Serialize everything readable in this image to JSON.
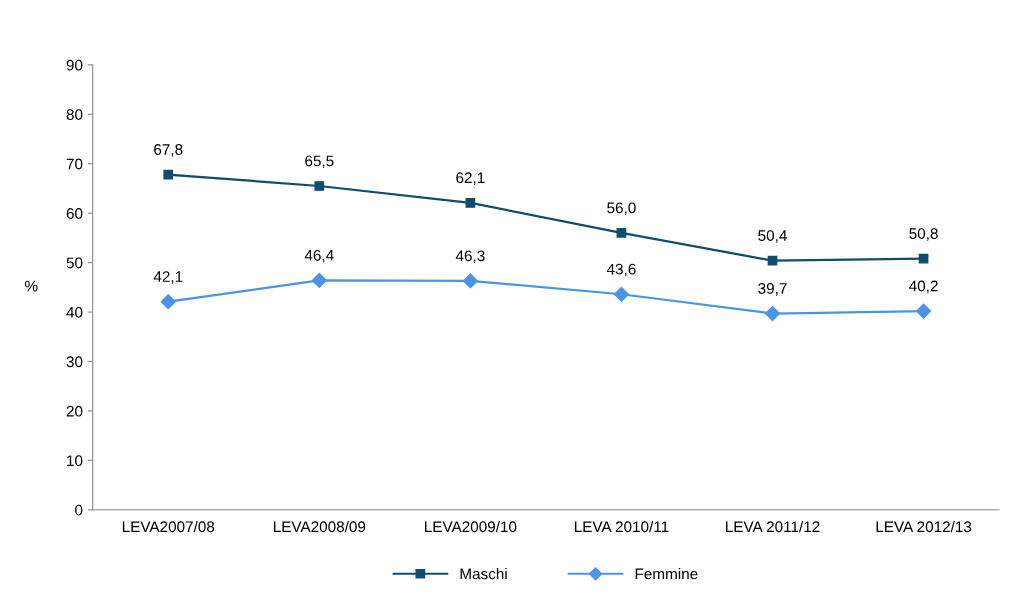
{
  "chart_data": {
    "type": "line",
    "ylabel": "%",
    "categories": [
      "LEVA2007/08",
      "LEVA2008/09",
      "LEVA2009/10",
      "LEVA 2010/11",
      "LEVA 2011/12",
      "LEVA 2012/13"
    ],
    "series": [
      {
        "name": "Maschi",
        "color": "#0f4c6e",
        "marker": "square",
        "values": [
          67.8,
          65.5,
          62.1,
          56.0,
          50.4,
          50.8
        ],
        "value_labels": [
          "67,8",
          "65,5",
          "62,1",
          "56,0",
          "50,4",
          "50,8"
        ]
      },
      {
        "name": "Femmine",
        "color": "#4a94e8",
        "marker": "diamond",
        "values": [
          42.1,
          46.4,
          46.3,
          43.6,
          39.7,
          40.2
        ],
        "value_labels": [
          "42,1",
          "46,4",
          "46,3",
          "43,6",
          "39,7",
          "40,2"
        ]
      }
    ],
    "ylim": [
      0,
      90
    ],
    "yticks": [
      0,
      10,
      20,
      30,
      40,
      50,
      60,
      70,
      80,
      90
    ],
    "grid": false,
    "legend": "bottom",
    "line_style": "solid"
  }
}
